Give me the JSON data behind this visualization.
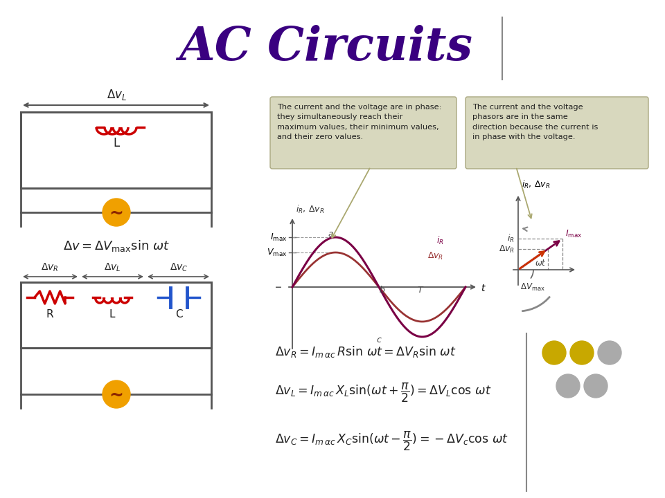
{
  "title": "AC Circuits",
  "title_color": "#3a0080",
  "title_fontsize": 48,
  "bg_color": "#ffffff",
  "box_text_1": "The current and the voltage are in phase:\nthey simultaneously reach their\nmaximum values, their minimum values,\nand their zero values.",
  "box_text_2": "The current and the voltage\nphasors are in the same\ndirection because the current is\nin phase with the voltage.",
  "circuit_color": "#cc0000",
  "inductor_color": "#cc0000",
  "capacitor_color": "#2255cc",
  "source_color": "#f0a000",
  "wire_color": "#555555",
  "text_color": "#222222",
  "wave_color1": "#7a0045",
  "wave_color2": "#993355",
  "phasor_color1": "#8b0050",
  "phasor_color2": "#cc3300",
  "dots_yellow": "#c8a800",
  "dots_gray": "#aaaaaa"
}
